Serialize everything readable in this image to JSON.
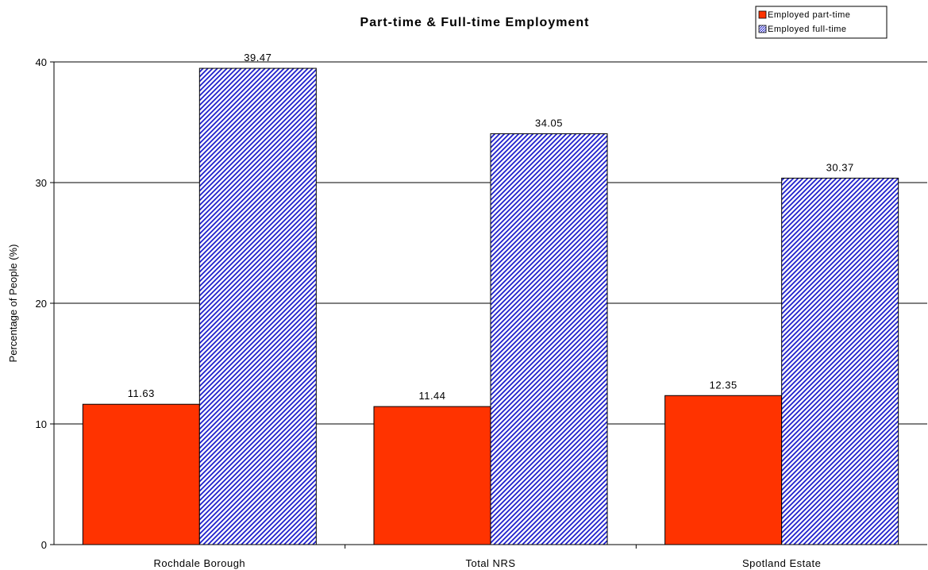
{
  "chart_data": {
    "type": "bar",
    "title": "Part-time & Full-time Employment",
    "xlabel": "",
    "ylabel": "Percentage of People (%)",
    "categories": [
      "Rochdale Borough",
      "Total NRS",
      "Spotland Estate"
    ],
    "series": [
      {
        "name": "Employed part-time",
        "values": [
          11.63,
          11.44,
          12.35
        ],
        "color": "#ff3300",
        "fill": "solid"
      },
      {
        "name": "Employed full-time",
        "values": [
          39.47,
          34.05,
          30.37
        ],
        "color": "#1f1fcc",
        "fill": "diagonal-hatch"
      }
    ],
    "value_labels": [
      [
        "11.63",
        "11.44",
        "12.35"
      ],
      [
        "39.47",
        "34.05",
        "30.37"
      ]
    ],
    "ylim": [
      0,
      40
    ],
    "yticks": [
      0,
      10,
      20,
      30,
      40
    ],
    "ytick_labels": [
      "0",
      "10",
      "20",
      "30",
      "40"
    ],
    "grid": true,
    "legend_position": "top-right"
  }
}
